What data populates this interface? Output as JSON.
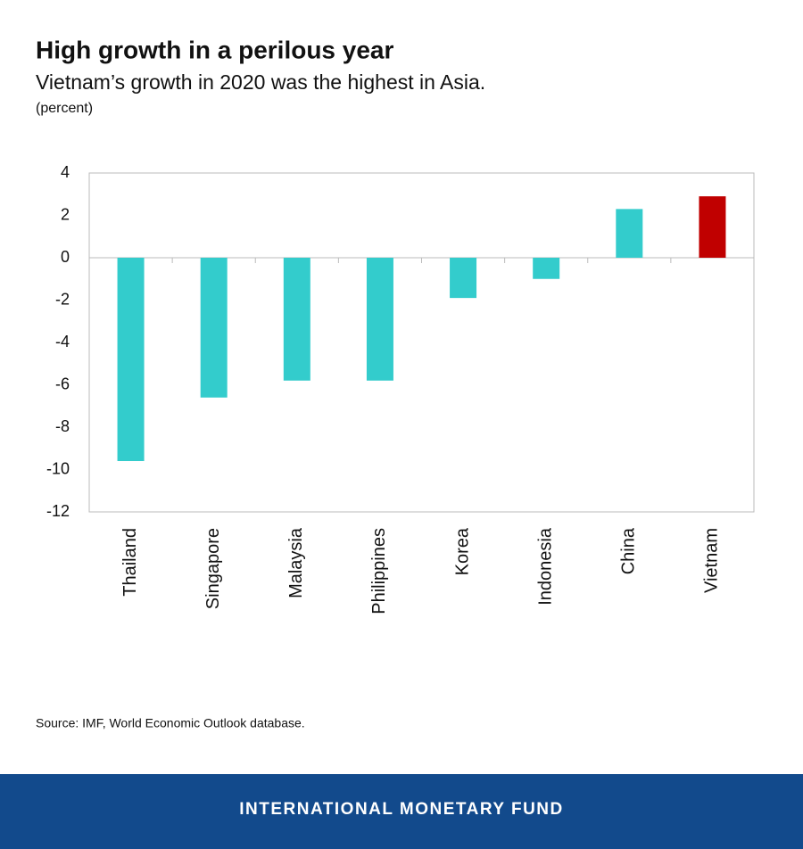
{
  "chart_data": {
    "type": "bar",
    "title": "High growth in a perilous year",
    "subtitle": "Vietnam’s growth in 2020 was the highest in Asia.",
    "unit_label": "(percent)",
    "categories": [
      "Thailand",
      "Singapore",
      "Malaysia",
      "Philippines",
      "Korea",
      "Indonesia",
      "China",
      "Vietnam"
    ],
    "values": [
      -9.6,
      -6.6,
      -5.8,
      -5.8,
      -1.9,
      -1.0,
      2.3,
      2.9
    ],
    "colors": [
      "#33cccc",
      "#33cccc",
      "#33cccc",
      "#33cccc",
      "#33cccc",
      "#33cccc",
      "#33cccc",
      "#c00000"
    ],
    "ylim": [
      -12,
      4
    ],
    "yticks": [
      -12,
      -10,
      -8,
      -6,
      -4,
      -2,
      0,
      2,
      4
    ],
    "source": "Source: IMF, World Economic Outlook database."
  },
  "footer": "INTERNATIONAL MONETARY FUND"
}
